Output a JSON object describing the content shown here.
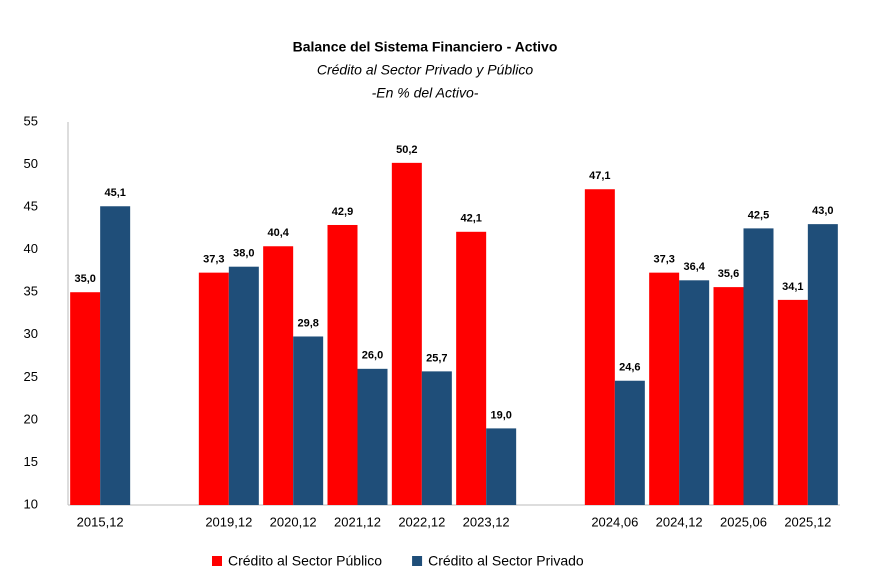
{
  "chart_data": {
    "type": "bar",
    "title": "Balance del Sistema Financiero - Activo",
    "subtitles": [
      "Crédito al Sector Privado y Público",
      "-En % del Activo-"
    ],
    "categories": [
      "2015,12",
      null,
      "2019,12",
      "2020,12",
      "2021,12",
      "2022,12",
      "2023,12",
      null,
      "2024,06",
      "2024,12",
      "2025,06",
      "2025,12"
    ],
    "series": [
      {
        "name": "Crédito al Sector Público",
        "color": "#ff0000",
        "values": [
          35.0,
          null,
          37.3,
          40.4,
          42.9,
          50.2,
          42.1,
          null,
          47.1,
          37.3,
          35.6,
          34.1
        ],
        "value_labels": [
          "35,0",
          null,
          "37,3",
          "40,4",
          "42,9",
          "50,2",
          "42,1",
          null,
          "47,1",
          "37,3",
          "35,6",
          "34,1"
        ]
      },
      {
        "name": "Crédito al Sector Privado",
        "color": "#1f4e79",
        "values": [
          45.1,
          null,
          38.0,
          29.8,
          26.0,
          25.7,
          19.0,
          null,
          24.6,
          36.4,
          42.5,
          43.0
        ],
        "value_labels": [
          "45,1",
          null,
          "38,0",
          "29,8",
          "26,0",
          "25,7",
          "19,0",
          null,
          "24,6",
          "36,4",
          "42,5",
          "43,0"
        ]
      }
    ],
    "ylim": [
      10,
      55
    ],
    "yticks": [
      10,
      15,
      20,
      25,
      30,
      35,
      40,
      45,
      50,
      55
    ],
    "grid": false,
    "legend": "bottom"
  }
}
